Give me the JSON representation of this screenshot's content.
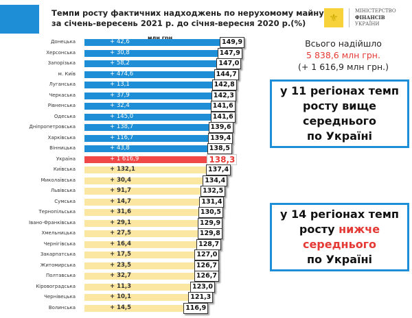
{
  "title_line1": "Темпи росту фактичних надходжень по нерухомому майну",
  "title_line2": "за січень-вересень 2021 р. до січня-вересня 2020 р.(%)",
  "logo": {
    "line1": "МІНІСТЕРСТВО",
    "line2": "ФІНАНСІВ",
    "line3": "УКРАЇНИ"
  },
  "summary": {
    "line1": "Всього надійшло",
    "line2": "5 838,6 млн грн.",
    "line3": "(+ 1 616,9 млн грн.)"
  },
  "box_above": {
    "line1": "у 11 регіонах темп",
    "line2": "росту вище",
    "line3": "середнього",
    "line4": "по  Україні"
  },
  "box_below": {
    "line1": "у 14 регіонах темп",
    "line2a": "росту ",
    "line2b": "нижче",
    "line3": "середнього",
    "line4": "по  Україні"
  },
  "colors": {
    "above": "#1e8fd6",
    "ukraine": "#f04747",
    "below": "#fbe7a1"
  },
  "chart_data": {
    "type": "bar",
    "orientation": "horizontal",
    "unit_label": "млн грн",
    "categories": [
      "Донецька",
      "Херсонська",
      "Запорізька",
      "м. Київ",
      "Луганська",
      "Черкаська",
      "Рівненська",
      "Одеська",
      "Дніпропетровська",
      "Харківська",
      "Вінницька",
      "Україна",
      "Київська",
      "Миколаївська",
      "Львівська",
      "Сумська",
      "Тернопільська",
      "Івано-Франківська",
      "Хмельницька",
      "Чернігівська",
      "Закарпатська",
      "Житомирська",
      "Полтавська",
      "Кіровоградська",
      "Чернівецька",
      "Волинська"
    ],
    "values": [
      "149,9",
      "147,9",
      "147,0",
      "144,7",
      "142,8",
      "142,3",
      "141,6",
      "141,6",
      "139,6",
      "139,4",
      "138,5",
      "138,3",
      "137,4",
      "134,4",
      "132,5",
      "131,4",
      "130,5",
      "129,9",
      "129,8",
      "128,7",
      "127,0",
      "126,7",
      "126,7",
      "123,0",
      "121,3",
      "116,9"
    ],
    "increments": [
      "+ 42,6",
      "+ 30,8",
      "+ 58,2",
      "+ 474,6",
      "+ 13,1",
      "+ 37,9",
      "+ 32,4",
      "+ 145,0",
      "+ 138,7",
      "+ 116,7",
      "+ 43,8",
      "+ 1 616,9",
      "+ 132,1",
      "+ 30,4",
      "+ 91,7",
      "+ 14,7",
      "+ 31,6",
      "+ 29,1",
      "+ 27,5",
      "+ 16,4",
      "+ 17,5",
      "+ 23,5",
      "+ 32,7",
      "+ 11,3",
      "+ 10,1",
      "+ 14,5"
    ]
  }
}
